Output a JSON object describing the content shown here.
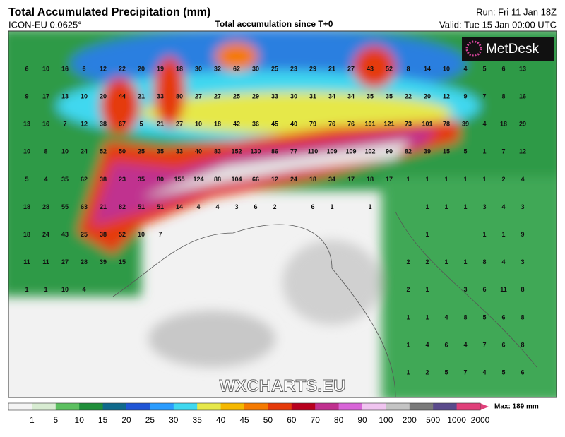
{
  "header": {
    "title": "Total Accumulated Precipitation (mm)",
    "model": "ICON-EU 0.0625°",
    "subtitle": "Total accumulation since T+0",
    "run": "Run: Fri 11 Jan 18Z",
    "valid": "Valid: Tue 15 Jan 00:00 UTC"
  },
  "logo": "MetDesk",
  "watermark": "WXCHARTS.EU",
  "map": {
    "rows": [
      [
        6,
        10,
        16,
        6,
        12,
        22,
        20,
        19,
        18,
        30,
        32,
        62,
        30,
        25,
        23,
        29,
        21,
        27,
        43,
        52,
        8,
        14,
        10,
        4,
        5,
        6,
        13
      ],
      [
        9,
        17,
        13,
        10,
        20,
        44,
        21,
        33,
        80,
        27,
        27,
        25,
        29,
        33,
        30,
        31,
        34,
        34,
        35,
        35,
        22,
        20,
        12,
        9,
        7,
        8,
        16
      ],
      [
        13,
        16,
        7,
        12,
        38,
        67,
        5,
        21,
        27,
        10,
        18,
        42,
        36,
        45,
        40,
        79,
        76,
        76,
        101,
        121,
        73,
        101,
        78,
        39,
        4,
        18,
        29
      ],
      [
        10,
        8,
        10,
        24,
        52,
        50,
        25,
        35,
        33,
        40,
        83,
        152,
        130,
        86,
        77,
        110,
        109,
        109,
        102,
        90,
        82,
        39,
        15,
        5,
        1,
        7,
        12
      ],
      [
        5,
        4,
        35,
        62,
        38,
        23,
        35,
        80,
        155,
        124,
        88,
        104,
        66,
        12,
        24,
        18,
        34,
        17,
        18,
        17,
        1,
        1,
        1,
        1,
        1,
        2,
        4
      ],
      [
        18,
        28,
        55,
        63,
        21,
        82,
        51,
        51,
        14,
        4,
        4,
        3,
        6,
        2,
        null,
        6,
        1,
        null,
        1,
        null,
        null,
        1,
        1,
        1,
        3,
        4,
        3
      ],
      [
        18,
        24,
        43,
        25,
        38,
        52,
        10,
        7,
        null,
        null,
        null,
        null,
        null,
        null,
        null,
        null,
        null,
        null,
        null,
        null,
        null,
        1,
        null,
        null,
        1,
        1,
        9
      ],
      [
        11,
        11,
        27,
        28,
        39,
        15,
        null,
        null,
        null,
        null,
        null,
        null,
        null,
        null,
        null,
        null,
        null,
        null,
        null,
        null,
        2,
        2,
        1,
        1,
        8,
        4,
        3
      ],
      [
        1,
        1,
        10,
        4,
        null,
        null,
        null,
        null,
        null,
        null,
        null,
        null,
        null,
        null,
        null,
        null,
        null,
        null,
        null,
        null,
        2,
        1,
        null,
        3,
        6,
        11,
        8
      ],
      [
        null,
        null,
        null,
        null,
        null,
        null,
        null,
        null,
        null,
        null,
        null,
        null,
        null,
        null,
        null,
        null,
        null,
        null,
        null,
        null,
        1,
        1,
        4,
        8,
        5,
        6,
        8
      ],
      [
        null,
        null,
        null,
        null,
        null,
        null,
        null,
        null,
        null,
        null,
        null,
        null,
        null,
        null,
        null,
        null,
        null,
        null,
        null,
        null,
        1,
        4,
        6,
        4,
        7,
        6,
        8
      ],
      [
        null,
        null,
        null,
        null,
        null,
        null,
        null,
        null,
        null,
        null,
        null,
        null,
        null,
        null,
        null,
        null,
        null,
        null,
        null,
        null,
        1,
        2,
        5,
        7,
        4,
        5,
        6
      ]
    ]
  },
  "colorbar": {
    "levels": [
      1,
      5,
      10,
      15,
      20,
      25,
      30,
      35,
      40,
      45,
      50,
      60,
      70,
      80,
      90,
      100,
      200,
      500,
      1000,
      2000
    ],
    "colors": [
      "#f4f4f4",
      "#d8ecd2",
      "#5cc060",
      "#1f8f3a",
      "#0f6a8c",
      "#1f55d6",
      "#2a9cff",
      "#3fd8f0",
      "#e6e84a",
      "#f5b800",
      "#f57a00",
      "#e53a0a",
      "#b8001e",
      "#c0308f",
      "#d865d8",
      "#f0c4f0",
      "#c4c4c4",
      "#7a7a7a",
      "#5b4b8c",
      "#e0407a"
    ],
    "max_label": "Max: 189 mm"
  }
}
